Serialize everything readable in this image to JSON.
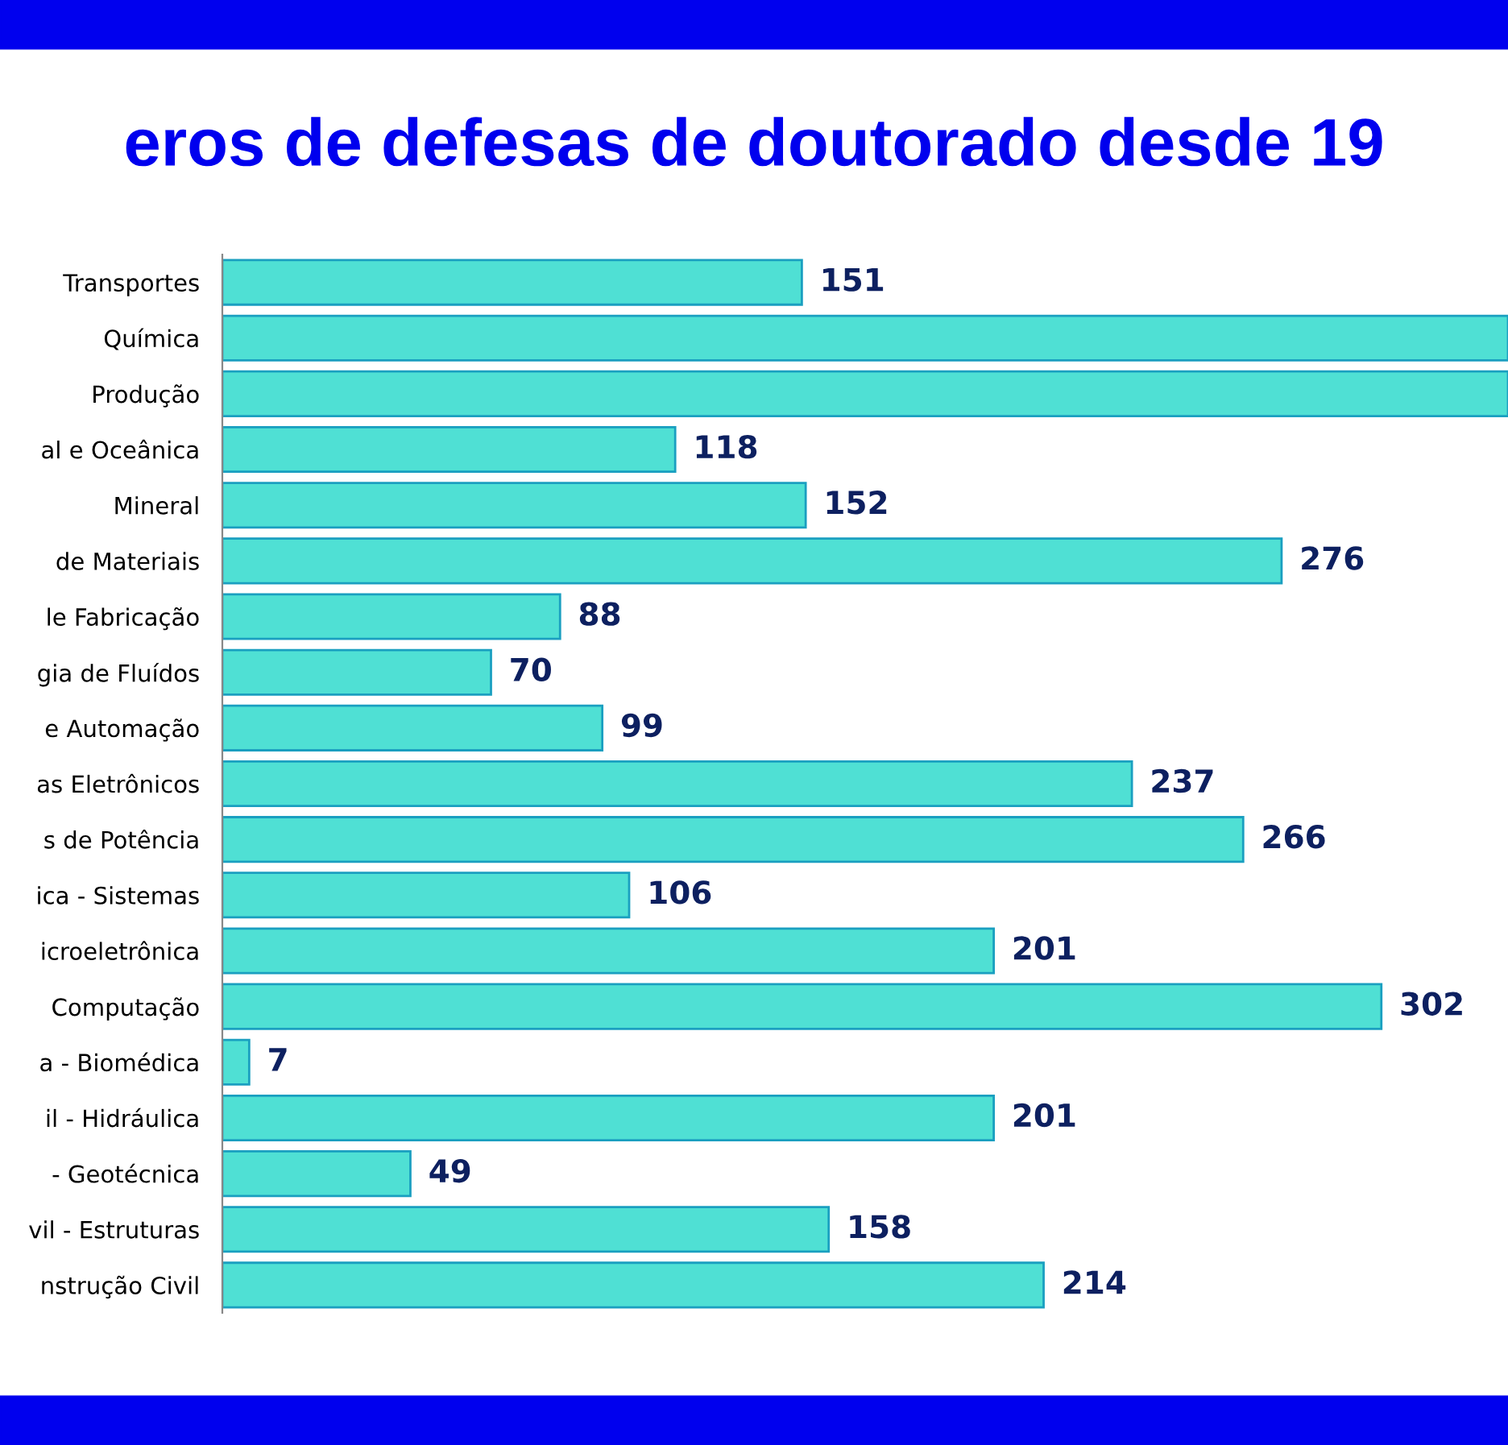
{
  "chart_data": {
    "type": "bar",
    "orientation": "horizontal",
    "title": "eros de defesas de doutorado desde 19",
    "categories": [
      "Transportes",
      "Química",
      "Produção",
      "al e Oceânica",
      "Mineral",
      " de Materiais",
      "le Fabricação",
      "gia de Fluídos",
      "e Automação",
      "as Eletrônicos",
      "s de Potência",
      "ica - Sistemas",
      "icroeletrônica",
      "Computação",
      "a - Biomédica",
      "il - Hidráulica",
      "- Geotécnica",
      "vil - Estruturas",
      "nstrução Civil"
    ],
    "values": [
      151,
      335,
      335,
      118,
      152,
      276,
      88,
      70,
      99,
      237,
      266,
      106,
      201,
      302,
      7,
      201,
      49,
      158,
      214
    ],
    "value_labels": [
      "151",
      null,
      null,
      "118",
      "152",
      "276",
      "88",
      "70",
      "99",
      "237",
      "266",
      "106",
      "201",
      "302",
      "7",
      "201",
      "49",
      "158",
      "214"
    ],
    "color": "#4fe0d4",
    "xlim": [
      0,
      335
    ],
    "tick_labels": "y",
    "grid": false
  }
}
